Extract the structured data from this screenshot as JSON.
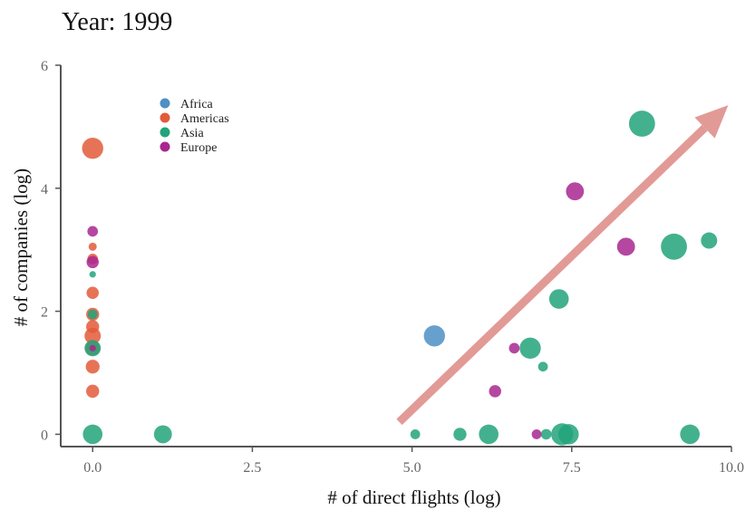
{
  "chart_data": {
    "type": "scatter",
    "title": "Year: 1999",
    "xlabel": "# of direct flights (log)",
    "ylabel": "# of companies (log)",
    "xlim": [
      -0.5,
      10.0
    ],
    "ylim": [
      -0.2,
      6.0
    ],
    "xticks": [
      0.0,
      2.5,
      5.0,
      7.5,
      10.0
    ],
    "xtick_labels": [
      "0.0",
      "2.5",
      "5.0",
      "7.5",
      "10.0"
    ],
    "yticks": [
      0,
      2,
      4,
      6
    ],
    "ytick_labels": [
      "0",
      "2",
      "4",
      "6"
    ],
    "grid": false,
    "legend_position": "top-left",
    "colors": {
      "Africa": "#4e8fc4",
      "Americas": "#e35a3a",
      "Asia": "#22a37a",
      "Europe": "#a8278f",
      "arrow": "#e29a96"
    },
    "series": [
      {
        "name": "Africa",
        "points": [
          {
            "x": 5.35,
            "y": 1.6,
            "size": 2.6
          }
        ]
      },
      {
        "name": "Americas",
        "points": [
          {
            "x": 0.0,
            "y": 4.65,
            "size": 2.6
          },
          {
            "x": 0.0,
            "y": 3.05,
            "size": 1.0
          },
          {
            "x": 0.0,
            "y": 2.85,
            "size": 1.3
          },
          {
            "x": 0.0,
            "y": 2.3,
            "size": 1.5
          },
          {
            "x": 0.0,
            "y": 1.95,
            "size": 1.6
          },
          {
            "x": 0.0,
            "y": 1.75,
            "size": 1.6
          },
          {
            "x": 0.0,
            "y": 1.6,
            "size": 2.0
          },
          {
            "x": 0.0,
            "y": 1.4,
            "size": 1.8
          },
          {
            "x": 0.0,
            "y": 1.1,
            "size": 1.7
          },
          {
            "x": 0.0,
            "y": 0.7,
            "size": 1.6
          }
        ]
      },
      {
        "name": "Asia",
        "points": [
          {
            "x": 0.0,
            "y": 2.6,
            "size": 0.8
          },
          {
            "x": 0.0,
            "y": 1.95,
            "size": 1.2
          },
          {
            "x": 0.0,
            "y": 1.4,
            "size": 2.0
          },
          {
            "x": 0.0,
            "y": 0.0,
            "size": 2.4
          },
          {
            "x": 1.1,
            "y": 0.0,
            "size": 2.2
          },
          {
            "x": 5.05,
            "y": 0.0,
            "size": 1.2
          },
          {
            "x": 5.75,
            "y": 0.0,
            "size": 1.6
          },
          {
            "x": 6.2,
            "y": 0.0,
            "size": 2.4
          },
          {
            "x": 6.85,
            "y": 1.4,
            "size": 2.6
          },
          {
            "x": 7.05,
            "y": 1.1,
            "size": 1.2
          },
          {
            "x": 7.1,
            "y": 0.0,
            "size": 1.3
          },
          {
            "x": 7.3,
            "y": 2.2,
            "size": 2.4
          },
          {
            "x": 7.35,
            "y": 0.0,
            "size": 2.7
          },
          {
            "x": 7.45,
            "y": 0.0,
            "size": 2.5
          },
          {
            "x": 8.6,
            "y": 5.05,
            "size": 3.2
          },
          {
            "x": 9.1,
            "y": 3.05,
            "size": 3.2
          },
          {
            "x": 9.35,
            "y": 0.0,
            "size": 2.4
          },
          {
            "x": 9.65,
            "y": 3.15,
            "size": 2.0
          }
        ]
      },
      {
        "name": "Europe",
        "points": [
          {
            "x": 0.0,
            "y": 3.3,
            "size": 1.3
          },
          {
            "x": 0.0,
            "y": 2.8,
            "size": 1.5
          },
          {
            "x": 0.0,
            "y": 1.4,
            "size": 0.8
          },
          {
            "x": 6.3,
            "y": 0.7,
            "size": 1.5
          },
          {
            "x": 6.6,
            "y": 1.4,
            "size": 1.3
          },
          {
            "x": 6.95,
            "y": 0.0,
            "size": 1.2
          },
          {
            "x": 7.55,
            "y": 3.95,
            "size": 2.2
          },
          {
            "x": 8.35,
            "y": 3.05,
            "size": 2.2
          }
        ]
      }
    ],
    "annotations": [
      {
        "type": "arrow",
        "from": {
          "x": 4.8,
          "y": 0.2
        },
        "to": {
          "x": 9.95,
          "y": 5.35
        }
      }
    ]
  }
}
